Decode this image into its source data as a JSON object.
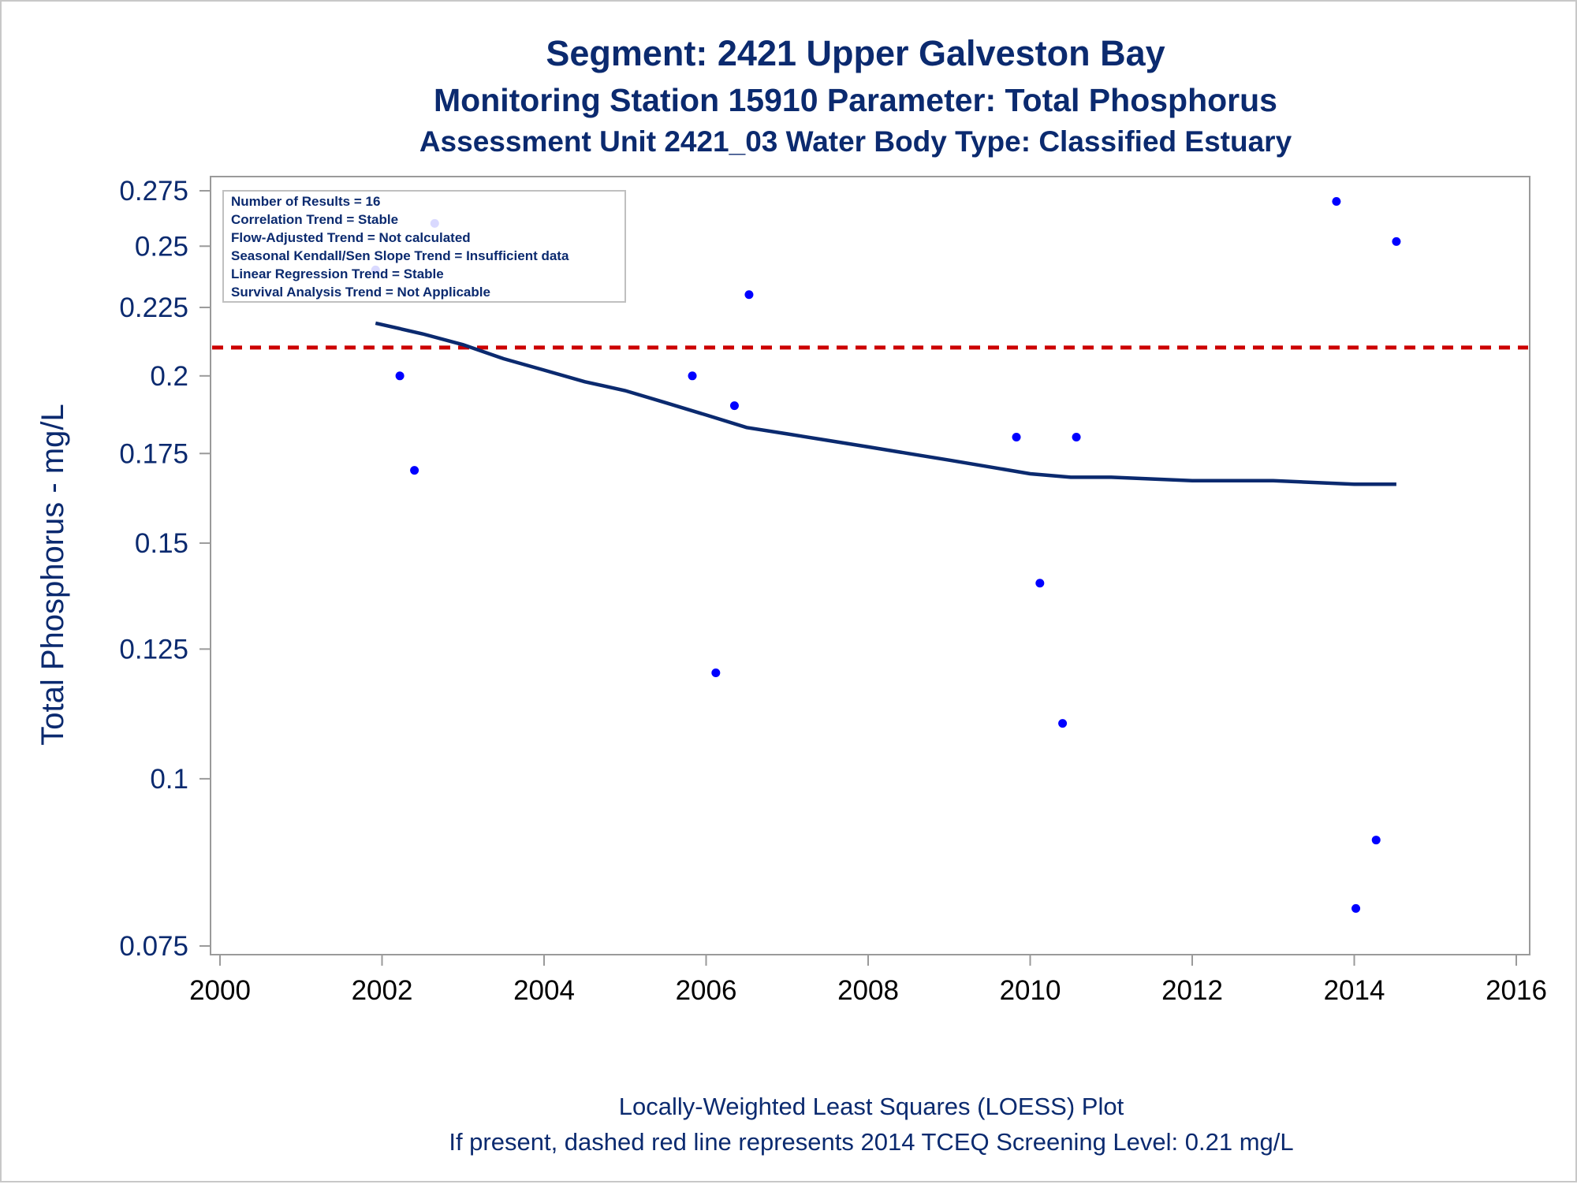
{
  "titles": [
    "Segment: 2421  Upper Galveston Bay",
    "Monitoring Station 15910 Parameter: Total Phosphorus",
    "Assessment Unit 2421_03   Water Body Type: Classified Estuary"
  ],
  "footnotes": [
    "Locally-Weighted Least Squares (LOESS) Plot",
    "If present, dashed red line represents 2014 TCEQ Screening Level: 0.21 mg/L"
  ],
  "stats_box": [
    "Number of Results = 16",
    "Correlation Trend = Stable",
    "Flow-Adjusted Trend = Not calculated",
    "Seasonal Kendall/Sen Slope Trend = Insufficient data",
    "Linear Regression Trend = Stable",
    "Survival Analysis Trend = Not Applicable"
  ],
  "colors": {
    "text": "#0b2a6f",
    "points": "#0000ff",
    "loess": "#0b2a6f",
    "screening_line": "#cc0000",
    "axis": "#9a9a9a"
  },
  "chart_data": {
    "type": "scatter",
    "ylabel": "Total Phosphorus - mg/L",
    "xlabel": "",
    "x_unit": "year",
    "yscale": "log",
    "xlim": [
      2000,
      2016
    ],
    "ylim": [
      0.073,
      0.28
    ],
    "x_ticks": [
      2000,
      2002,
      2004,
      2006,
      2008,
      2010,
      2012,
      2014,
      2016
    ],
    "x_tick_labels": [
      "2000",
      "2002",
      "2004",
      "2006",
      "2008",
      "2010",
      "2012",
      "2014",
      "2016"
    ],
    "y_ticks": [
      0.075,
      0.1,
      0.125,
      0.15,
      0.175,
      0.2,
      0.225,
      0.25,
      0.275
    ],
    "y_tick_labels": [
      "0.075",
      "0.1",
      "0.125",
      "0.15",
      "0.175",
      "0.2",
      "0.225",
      "0.25",
      "0.275"
    ],
    "grid": false,
    "points": [
      {
        "x": 2001.92,
        "y": 0.24
      },
      {
        "x": 2002.22,
        "y": 0.2
      },
      {
        "x": 2002.4,
        "y": 0.17
      },
      {
        "x": 2002.65,
        "y": 0.26
      },
      {
        "x": 2005.83,
        "y": 0.2
      },
      {
        "x": 2006.12,
        "y": 0.12
      },
      {
        "x": 2006.35,
        "y": 0.19
      },
      {
        "x": 2006.53,
        "y": 0.23
      },
      {
        "x": 2009.83,
        "y": 0.18
      },
      {
        "x": 2010.12,
        "y": 0.14
      },
      {
        "x": 2010.4,
        "y": 0.11
      },
      {
        "x": 2010.57,
        "y": 0.18
      },
      {
        "x": 2013.78,
        "y": 0.27
      },
      {
        "x": 2014.02,
        "y": 0.08
      },
      {
        "x": 2014.27,
        "y": 0.09
      },
      {
        "x": 2014.52,
        "y": 0.252
      }
    ],
    "loess_curve": [
      {
        "x": 2001.92,
        "y": 0.219
      },
      {
        "x": 2002.5,
        "y": 0.215
      },
      {
        "x": 2003.0,
        "y": 0.211
      },
      {
        "x": 2003.5,
        "y": 0.206
      },
      {
        "x": 2004.0,
        "y": 0.202
      },
      {
        "x": 2004.5,
        "y": 0.198
      },
      {
        "x": 2005.0,
        "y": 0.195
      },
      {
        "x": 2005.5,
        "y": 0.191
      },
      {
        "x": 2006.0,
        "y": 0.187
      },
      {
        "x": 2006.5,
        "y": 0.183
      },
      {
        "x": 2007.0,
        "y": 0.181
      },
      {
        "x": 2007.5,
        "y": 0.179
      },
      {
        "x": 2008.0,
        "y": 0.177
      },
      {
        "x": 2008.5,
        "y": 0.175
      },
      {
        "x": 2009.0,
        "y": 0.173
      },
      {
        "x": 2009.5,
        "y": 0.171
      },
      {
        "x": 2010.0,
        "y": 0.169
      },
      {
        "x": 2010.5,
        "y": 0.168
      },
      {
        "x": 2011.0,
        "y": 0.168
      },
      {
        "x": 2012.0,
        "y": 0.167
      },
      {
        "x": 2013.0,
        "y": 0.167
      },
      {
        "x": 2014.0,
        "y": 0.166
      },
      {
        "x": 2014.52,
        "y": 0.166
      }
    ],
    "reference_line": {
      "y": 0.21,
      "style": "dashed"
    }
  }
}
